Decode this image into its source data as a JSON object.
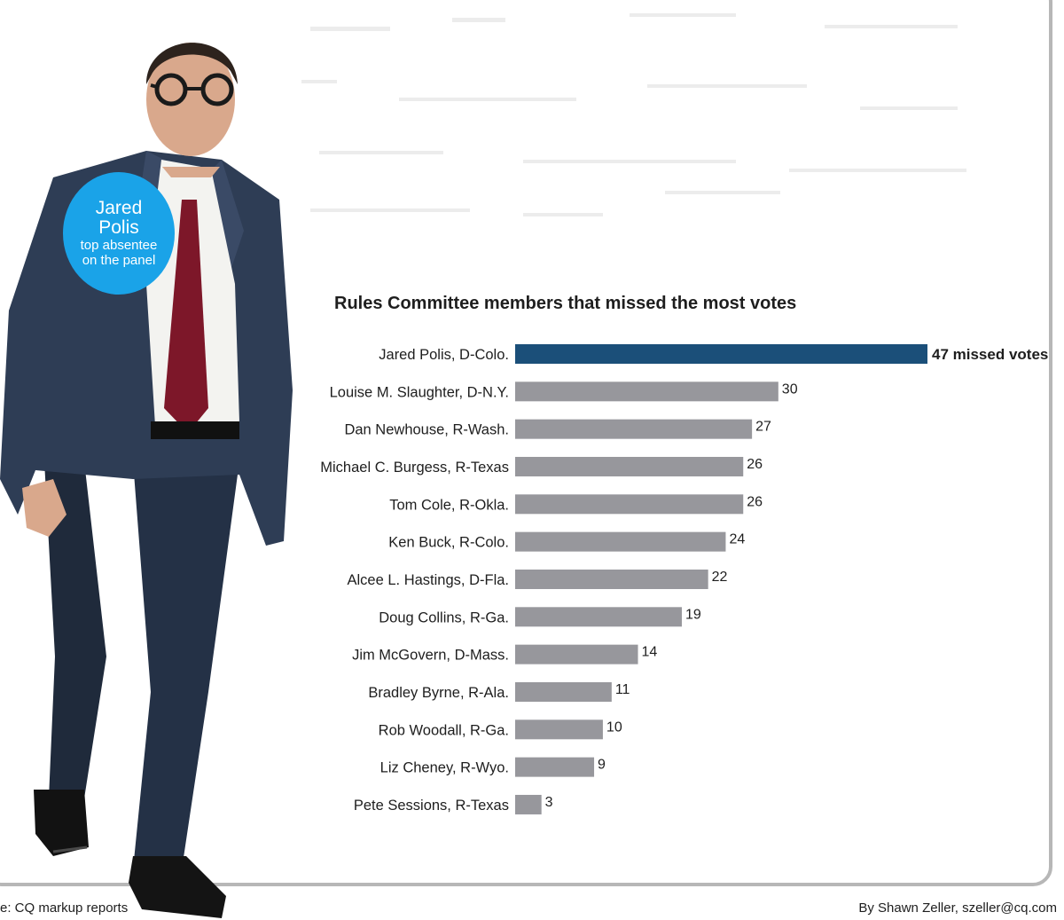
{
  "callout": {
    "name_line1": "Jared",
    "name_line2": "Polis",
    "sub_line1": "top absentee",
    "sub_line2": "on the panel"
  },
  "footer": {
    "source": "e: CQ markup reports",
    "byline": "By Shawn Zeller, szeller@cq.com"
  },
  "colors": {
    "highlight_bar": "#1b4f79",
    "bar": "#97979c",
    "callout": "#1aa3e8"
  },
  "chart_data": {
    "type": "bar",
    "orientation": "horizontal",
    "title": "Rules Committee members that missed the most votes",
    "xlabel": "",
    "ylabel": "",
    "xlim": [
      0,
      47
    ],
    "grid": false,
    "categories": [
      "Jared Polis, D-Colo.",
      "Louise M. Slaughter, D-N.Y.",
      "Dan Newhouse, R-Wash.",
      "Michael C. Burgess, R-Texas",
      "Tom Cole, R-Okla.",
      "Ken Buck, R-Colo.",
      "Alcee L. Hastings, D-Fla.",
      "Doug Collins, R-Ga.",
      "Jim McGovern, D-Mass.",
      "Bradley Byrne, R-Ala.",
      "Rob Woodall, R-Ga.",
      "Liz Cheney, R-Wyo.",
      "Pete Sessions, R-Texas"
    ],
    "values": [
      47,
      30,
      27,
      26,
      26,
      24,
      22,
      19,
      14,
      11,
      10,
      9,
      3
    ],
    "data_labels": [
      "47 missed votes",
      "30",
      "27",
      "26",
      "26",
      "24",
      "22",
      "19",
      "14",
      "11",
      "10",
      "9",
      "3"
    ],
    "highlight_index": 0
  }
}
